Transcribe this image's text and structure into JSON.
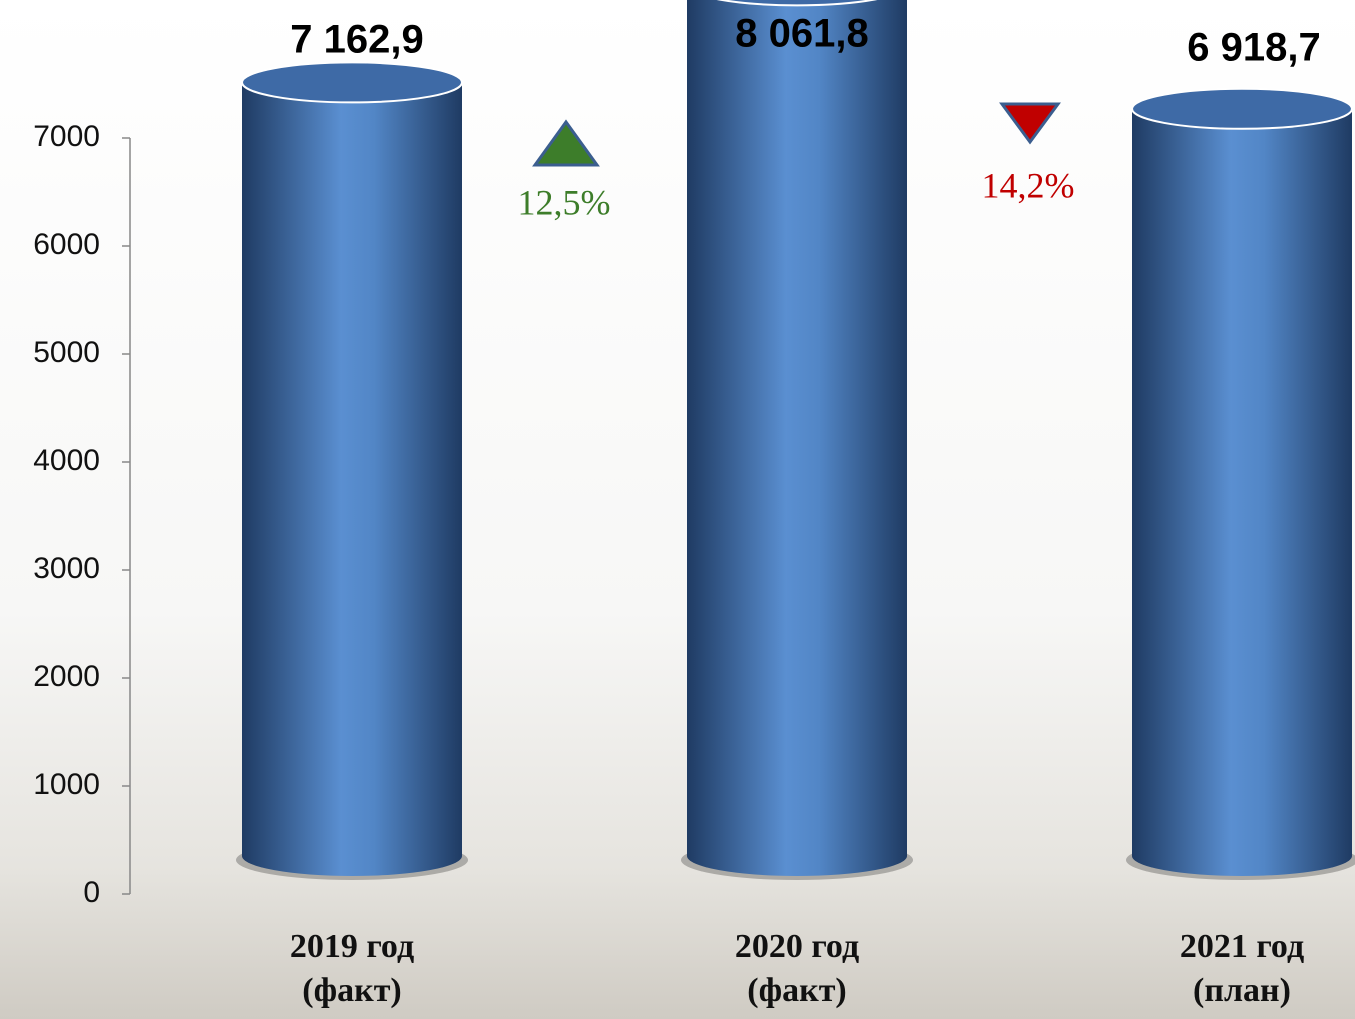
{
  "chart_data": {
    "type": "cylinder",
    "categories": [
      "2019 год (факт)",
      "2020 год (факт)",
      "2021 год (план)"
    ],
    "values": [
      7162.9,
      8061.8,
      6918.7
    ],
    "value_labels": [
      "7 162,9",
      "8 061,8",
      "6 918,7"
    ],
    "color": "#4f81bd",
    "ylim": [
      0,
      7000
    ],
    "yticks": [
      0,
      1000,
      2000,
      3000,
      4000,
      5000,
      6000,
      7000
    ],
    "annotations": [
      {
        "text": "12,5%",
        "direction": "up",
        "color": "#3d7d2a"
      },
      {
        "text": "14,2%",
        "direction": "down",
        "color": "#c00000"
      }
    ]
  }
}
